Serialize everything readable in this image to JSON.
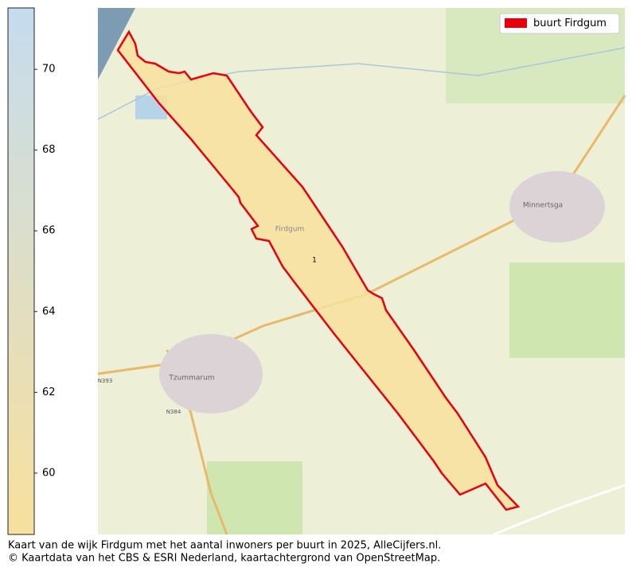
{
  "colorbar": {
    "lim": [
      58.48,
      71.52
    ],
    "ticks": [
      60,
      62,
      64,
      66,
      68,
      70
    ],
    "colors": [
      "#f8e09d",
      "#c5dcee"
    ]
  },
  "map": {
    "legend": "buurt Firdgum",
    "region_label": "1",
    "places": [
      "Firdgum",
      "Minnertsga",
      "Tzummarum",
      "N393",
      "N384"
    ]
  },
  "caption": [
    "Kaart van de wijk Firdgum met het aantal inwoners per buurt in 2025, AlleCijfers.nl.",
    "© Kaartdata van het CBS & ESRI Nederland, kaartachtergrond van OpenStreetMap."
  ]
}
